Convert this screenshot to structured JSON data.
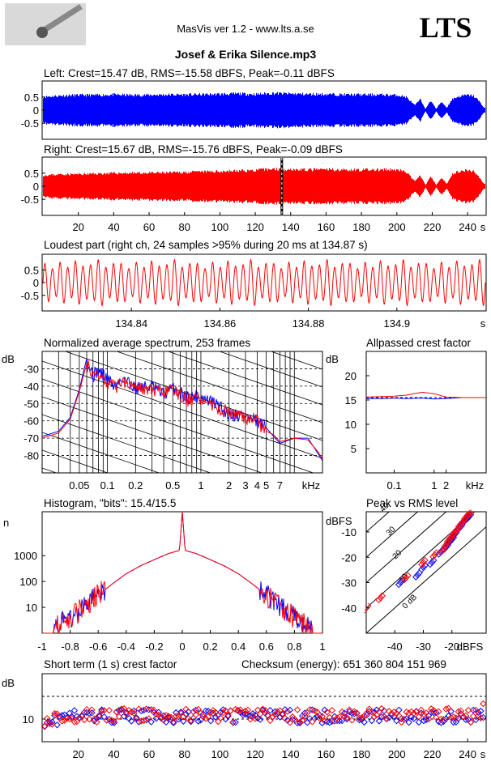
{
  "header": {
    "app_title": "MasVis ver 1.2 - www.lts.a.se",
    "logo_text": "LTS",
    "file_title": "Josef & Erika Silence.mp3"
  },
  "colors": {
    "left": "#0000ff",
    "right": "#ff0000",
    "axis": "#000000"
  },
  "time_axis": {
    "ticks": [
      "20",
      "40",
      "60",
      "80",
      "100",
      "120",
      "140",
      "160",
      "180",
      "200",
      "220",
      "240"
    ],
    "unit": "s"
  },
  "left_panel": {
    "title": "Left: Crest=15.47 dB, RMS=-15.58 dBFS, Peak=-0.11 dBFS",
    "yticks": [
      "0.5",
      "0",
      "-0.5"
    ]
  },
  "right_panel": {
    "title": "Right: Crest=15.67 dB, RMS=-15.76 dBFS, Peak=-0.09 dBFS",
    "yticks": [
      "0.5",
      "0",
      "-0.5"
    ]
  },
  "loudest_panel": {
    "title": "Loudest part (right ch, 24 samples >95% during 20 ms at 134.87 s)",
    "yticks": [
      "0.5",
      "0",
      "-0.5"
    ],
    "xticks": [
      "134.84",
      "134.86",
      "134.88",
      "134.9"
    ],
    "unit": "s"
  },
  "spectrum_panel": {
    "title": "Normalized average spectrum, 253 frames",
    "ylabel": "dB",
    "yticks": [
      "-30",
      "-40",
      "-50",
      "-60",
      "-70",
      "-80"
    ],
    "xticks": [
      "0.05",
      "0.1",
      "0.2",
      "0.5",
      "1",
      "2",
      "3",
      "4",
      "5",
      "7"
    ],
    "unit": "kHz"
  },
  "allpass_panel": {
    "title": "Allpassed crest factor",
    "ylabel": "dB",
    "yticks": [
      "20",
      "15",
      "10",
      "5"
    ],
    "xticks": [
      "0.1",
      "1",
      "2"
    ],
    "unit": "kHz"
  },
  "histogram_panel": {
    "title": "Histogram, \"bits\": 15.4/15.5",
    "ylabel": "n",
    "yticks": [
      "1000",
      "100",
      "10"
    ],
    "xticks": [
      "-1",
      "-0.8",
      "-0.6",
      "-0.4",
      "-0.2",
      "0",
      "0.2",
      "0.4",
      "0.6",
      "0.8",
      "1"
    ]
  },
  "peak_rms_panel": {
    "title": "Peak vs RMS level",
    "ylabel": "dBFS",
    "yticks": [
      "-10",
      "-20",
      "-30",
      "-40"
    ],
    "xticks": [
      "-40",
      "-30",
      "-20"
    ],
    "unit": "dBFS",
    "diag_labels": [
      "40",
      "30",
      "20",
      "10",
      "0 dB"
    ]
  },
  "crest_panel": {
    "title": "Short term (1 s) crest factor",
    "checksum": "Checksum (energy):   651 360 804 151 969",
    "ylabel": "dB",
    "yticks": [
      "10"
    ]
  },
  "chart_data": [
    {
      "type": "line",
      "title": "Left: Crest=15.47 dB, RMS=-15.58 dBFS, Peak=-0.11 dBFS",
      "xlabel": "",
      "ylabel": "",
      "xlim": [
        0,
        250
      ],
      "ylim": [
        -1,
        1
      ],
      "envelope": {
        "x": [
          0,
          10,
          20,
          30,
          40,
          50,
          60,
          70,
          80,
          90,
          100,
          110,
          120,
          130,
          140,
          150,
          160,
          170,
          180,
          190,
          200,
          205,
          210,
          213,
          216,
          219,
          222,
          225,
          228,
          231,
          234,
          237,
          240,
          243,
          246,
          249
        ],
        "peak": [
          0.55,
          0.6,
          0.62,
          0.62,
          0.64,
          0.62,
          0.63,
          0.64,
          0.64,
          0.65,
          0.66,
          0.68,
          0.66,
          0.7,
          0.68,
          0.66,
          0.66,
          0.64,
          0.64,
          0.64,
          0.62,
          0.55,
          0.2,
          0.45,
          0.05,
          0.4,
          0.05,
          0.35,
          0.1,
          0.45,
          0.55,
          0.6,
          0.62,
          0.6,
          0.4,
          0.1
        ]
      }
    },
    {
      "type": "line",
      "title": "Right: Crest=15.67 dB, RMS=-15.76 dBFS, Peak=-0.09 dBFS",
      "xlabel": "",
      "ylabel": "",
      "xlim": [
        0,
        250
      ],
      "ylim": [
        -1,
        1
      ],
      "envelope": {
        "x": [
          0,
          10,
          20,
          30,
          40,
          50,
          60,
          70,
          80,
          90,
          100,
          110,
          120,
          130,
          140,
          150,
          160,
          170,
          180,
          190,
          200,
          205,
          210,
          213,
          216,
          219,
          222,
          225,
          228,
          231,
          234,
          237,
          240,
          243,
          246,
          249
        ],
        "peak": [
          0.45,
          0.5,
          0.5,
          0.52,
          0.54,
          0.55,
          0.55,
          0.56,
          0.58,
          0.6,
          0.62,
          0.64,
          0.66,
          0.72,
          0.7,
          0.68,
          0.7,
          0.68,
          0.68,
          0.68,
          0.68,
          0.6,
          0.2,
          0.45,
          0.05,
          0.4,
          0.05,
          0.35,
          0.1,
          0.5,
          0.6,
          0.65,
          0.66,
          0.62,
          0.4,
          0.1
        ]
      },
      "marker_x": 135
    },
    {
      "type": "line",
      "title": "Loudest part (right ch, 24 samples >95% during 20 ms at 134.87 s)",
      "xlabel": "",
      "ylabel": "",
      "xlim": [
        134.82,
        134.92
      ],
      "ylim": [
        -1,
        1
      ],
      "cycles": 58,
      "amplitude_pattern": [
        0.75,
        0.55,
        0.8,
        0.6,
        0.85,
        0.65,
        0.7,
        0.9,
        0.6,
        0.75
      ]
    },
    {
      "type": "line",
      "title": "Normalized average spectrum, 253 frames",
      "xlabel": "kHz",
      "ylabel": "dB",
      "x_scale": "log",
      "xlim": [
        0.02,
        20
      ],
      "ylim": [
        -90,
        -20
      ],
      "series": [
        {
          "x": [
            0.02,
            0.03,
            0.04,
            0.05,
            0.06,
            0.07,
            0.08,
            0.1,
            0.12,
            0.15,
            0.2,
            0.3,
            0.4,
            0.5,
            0.7,
            1,
            1.5,
            2,
            3,
            4,
            5,
            6,
            7,
            10,
            14,
            18,
            20
          ],
          "values": [
            -69,
            -66,
            -58,
            -42,
            -24,
            -34,
            -31,
            -36,
            -40,
            -35,
            -41,
            -40,
            -45,
            -41,
            -46,
            -46,
            -51,
            -56,
            -57,
            -61,
            -64,
            -69,
            -73,
            -70,
            -70,
            -79,
            -83
          ]
        },
        {
          "x": [
            0.02,
            0.03,
            0.04,
            0.05,
            0.06,
            0.07,
            0.08,
            0.1,
            0.12,
            0.15,
            0.2,
            0.3,
            0.4,
            0.5,
            0.7,
            1,
            1.5,
            2,
            3,
            4,
            5,
            6,
            7,
            10,
            14,
            18,
            20
          ],
          "values": [
            -70,
            -67,
            -59,
            -43,
            -27,
            -35,
            -32,
            -38,
            -41,
            -37,
            -39,
            -43,
            -44,
            -42,
            -48,
            -47,
            -53,
            -55,
            -58,
            -60,
            -66,
            -68,
            -72,
            -70,
            -71,
            -78,
            -82
          ]
        }
      ]
    },
    {
      "type": "line",
      "title": "Allpassed crest factor",
      "xlabel": "kHz",
      "ylabel": "dB",
      "x_scale": "log",
      "xlim": [
        0.02,
        20
      ],
      "ylim": [
        0,
        25
      ],
      "series": [
        {
          "x": [
            0.02,
            0.05,
            0.1,
            0.2,
            0.5,
            1,
            2,
            5,
            20
          ],
          "values": [
            15.3,
            15.3,
            15.4,
            15.3,
            15.4,
            15.2,
            15.3,
            15.5,
            15.5
          ]
        },
        {
          "x": [
            0.02,
            0.05,
            0.1,
            0.2,
            0.5,
            1,
            2,
            5,
            20
          ],
          "values": [
            15.6,
            15.7,
            15.8,
            16.0,
            16.6,
            16.3,
            15.6,
            15.5,
            15.5
          ]
        }
      ],
      "reference_line": 15.5
    },
    {
      "type": "line",
      "title": "Histogram, \"bits\": 15.4/15.5",
      "xlabel": "",
      "ylabel": "n",
      "y_scale": "log",
      "xlim": [
        -1,
        1
      ],
      "ylim": [
        1,
        50000
      ],
      "x": [
        -0.92,
        -0.8,
        -0.7,
        -0.6,
        -0.5,
        -0.4,
        -0.3,
        -0.2,
        -0.1,
        -0.02,
        0,
        0.02,
        0.1,
        0.2,
        0.3,
        0.4,
        0.5,
        0.6,
        0.7,
        0.8,
        0.92
      ],
      "values": [
        1.5,
        4,
        10,
        30,
        80,
        200,
        400,
        700,
        1200,
        1600,
        50000,
        1600,
        1200,
        700,
        400,
        200,
        80,
        30,
        10,
        4,
        1.5
      ]
    },
    {
      "type": "scatter",
      "title": "Peak vs RMS level",
      "xlabel": "dBFS",
      "ylabel": "dBFS",
      "xlim": [
        -50,
        -8
      ],
      "ylim": [
        -50,
        -2
      ],
      "series": [
        {
          "points": [
            [
              -38,
              -30
            ],
            [
              -32,
              -27
            ],
            [
              -30,
              -24
            ],
            [
              -27,
              -22
            ],
            [
              -24,
              -18
            ],
            [
              -22,
              -16
            ],
            [
              -21,
              -14
            ],
            [
              -20,
              -13
            ],
            [
              -19,
              -11
            ],
            [
              -18,
              -9
            ],
            [
              -17,
              -8
            ],
            [
              -16,
              -6
            ],
            [
              -15,
              -5
            ],
            [
              -14,
              -4
            ]
          ]
        },
        {
          "points": [
            [
              -50,
              -40
            ],
            [
              -45,
              -36
            ],
            [
              -36,
              -28
            ],
            [
              -30,
              -22
            ],
            [
              -26,
              -19
            ],
            [
              -23,
              -17
            ],
            [
              -22,
              -15
            ],
            [
              -21,
              -13
            ],
            [
              -20,
              -12
            ],
            [
              -19,
              -10
            ],
            [
              -18,
              -9
            ],
            [
              -17,
              -7
            ],
            [
              -16,
              -6
            ],
            [
              -15,
              -4
            ],
            [
              -14,
              -3
            ],
            [
              -13,
              -2
            ]
          ]
        }
      ]
    },
    {
      "type": "scatter",
      "title": "Short term (1 s) crest factor",
      "xlabel": "",
      "ylabel": "dB",
      "xlim": [
        0,
        250
      ],
      "ylim": [
        0,
        30
      ],
      "reference_lines": [
        10,
        20
      ],
      "series": [
        {
          "mean": 11.2,
          "spread": 3
        },
        {
          "mean": 11.6,
          "spread": 3.2
        }
      ]
    }
  ]
}
